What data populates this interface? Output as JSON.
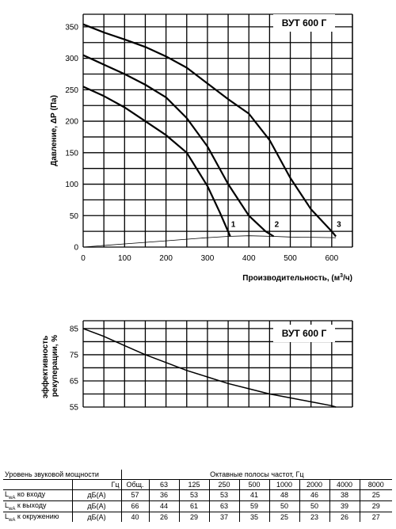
{
  "chart_data": [
    {
      "type": "line",
      "model_label": "ВУТ 600 Г",
      "xlabel": "Производительность, (м³/ч)",
      "ylabel": "Давление, ΔР (Па)",
      "xlim": [
        0,
        650
      ],
      "ylim": [
        0,
        370
      ],
      "x_ticks": [
        0,
        100,
        200,
        300,
        400,
        500,
        600
      ],
      "y_ticks": [
        0,
        50,
        100,
        150,
        200,
        250,
        300,
        350
      ],
      "grid": true,
      "series": [
        {
          "name": "1",
          "points": [
            [
              0,
              255
            ],
            [
              50,
              240
            ],
            [
              100,
              222
            ],
            [
              150,
              200
            ],
            [
              200,
              178
            ],
            [
              250,
              150
            ],
            [
              300,
              97
            ],
            [
              330,
              55
            ],
            [
              355,
              17
            ]
          ]
        },
        {
          "name": "2",
          "points": [
            [
              0,
              305
            ],
            [
              50,
              290
            ],
            [
              100,
              275
            ],
            [
              150,
              258
            ],
            [
              200,
              238
            ],
            [
              250,
              205
            ],
            [
              300,
              160
            ],
            [
              350,
              100
            ],
            [
              400,
              50
            ],
            [
              440,
              25
            ],
            [
              460,
              17
            ]
          ]
        },
        {
          "name": "3",
          "points": [
            [
              0,
              354
            ],
            [
              50,
              341
            ],
            [
              100,
              330
            ],
            [
              150,
              318
            ],
            [
              200,
              303
            ],
            [
              250,
              285
            ],
            [
              300,
              260
            ],
            [
              350,
              235
            ],
            [
              400,
              212
            ],
            [
              450,
              170
            ],
            [
              500,
              110
            ],
            [
              550,
              60
            ],
            [
              600,
              25
            ],
            [
              610,
              17
            ]
          ]
        },
        {
          "name": "",
          "style": "thin",
          "points": [
            [
              0,
              0
            ],
            [
              100,
              5
            ],
            [
              200,
              10
            ],
            [
              300,
              15
            ],
            [
              350,
              17
            ],
            [
              400,
              18
            ],
            [
              460,
              17
            ],
            [
              500,
              16
            ],
            [
              610,
              15
            ]
          ]
        }
      ]
    },
    {
      "type": "line",
      "model_label": "ВУТ 600 Г",
      "ylabel": "эффективность рекуперации, %",
      "xlim": [
        0,
        650
      ],
      "ylim": [
        55,
        88
      ],
      "y_ticks": [
        55,
        65,
        75,
        85
      ],
      "grid": true,
      "series": [
        {
          "name": "",
          "points": [
            [
              0,
              85
            ],
            [
              50,
              82
            ],
            [
              100,
              78.5
            ],
            [
              150,
              75
            ],
            [
              200,
              72
            ],
            [
              250,
              69
            ],
            [
              300,
              66.5
            ],
            [
              350,
              64
            ],
            [
              400,
              62
            ],
            [
              450,
              60
            ],
            [
              500,
              58.5
            ],
            [
              550,
              57
            ],
            [
              600,
              55.5
            ],
            [
              610,
              55
            ]
          ]
        }
      ]
    }
  ],
  "sound_table": {
    "title": "Уровень звуковой мощности",
    "bands_title": "Октавные полосы частот, Гц",
    "unit_header": "Гц",
    "total_header": "Общ.",
    "frequencies": [
      "63",
      "125",
      "250",
      "500",
      "1000",
      "2000",
      "4000",
      "8000"
    ],
    "rows": [
      {
        "label_main": "L",
        "label_sub": "wA",
        "label_rest": " ко входу",
        "unit": "дБ(А)",
        "total": "57",
        "values": [
          "36",
          "53",
          "53",
          "41",
          "48",
          "46",
          "38",
          "25"
        ]
      },
      {
        "label_main": "L",
        "label_sub": "wA",
        "label_rest": " к выходу",
        "unit": "дБ(А)",
        "total": "66",
        "values": [
          "44",
          "61",
          "63",
          "59",
          "50",
          "50",
          "39",
          "29"
        ]
      },
      {
        "label_main": "L",
        "label_sub": "wA",
        "label_rest": " к окружению",
        "unit": "дБ(А)",
        "total": "40",
        "values": [
          "26",
          "29",
          "37",
          "35",
          "25",
          "23",
          "26",
          "27"
        ]
      }
    ]
  }
}
